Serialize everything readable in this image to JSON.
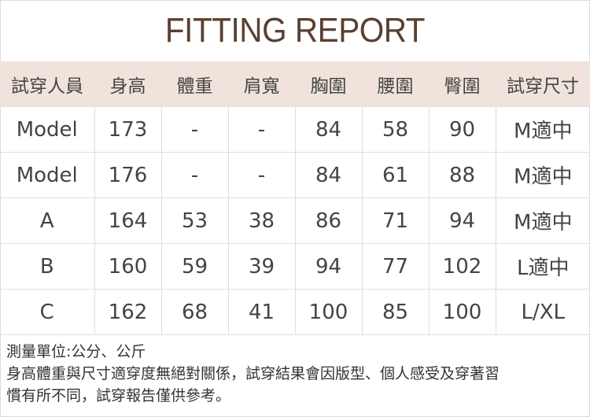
{
  "title": "FITTING REPORT",
  "colors": {
    "title": "#5a4030",
    "header_bg": "#efe3db",
    "text": "#444444"
  },
  "table": {
    "headers": [
      "試穿人員",
      "身高",
      "體重",
      "肩寬",
      "胸圍",
      "腰圍",
      "臀圍",
      "試穿尺寸"
    ],
    "rows": [
      [
        "Model",
        "173",
        "-",
        "-",
        "84",
        "58",
        "90",
        "M適中"
      ],
      [
        "Model",
        "176",
        "-",
        "-",
        "84",
        "61",
        "88",
        "M適中"
      ],
      [
        "A",
        "164",
        "53",
        "38",
        "86",
        "71",
        "94",
        "M適中"
      ],
      [
        "B",
        "160",
        "59",
        "39",
        "94",
        "77",
        "102",
        "L適中"
      ],
      [
        "C",
        "162",
        "68",
        "41",
        "100",
        "85",
        "100",
        "L/XL"
      ]
    ]
  },
  "notes": {
    "unit": "測量單位:公分、公斤",
    "line1": "身高體重與尺寸適穿度無絕對關係，試穿結果會因版型、個人感受及穿著習",
    "line2": "慣有所不同，試穿報告僅供參考。"
  }
}
